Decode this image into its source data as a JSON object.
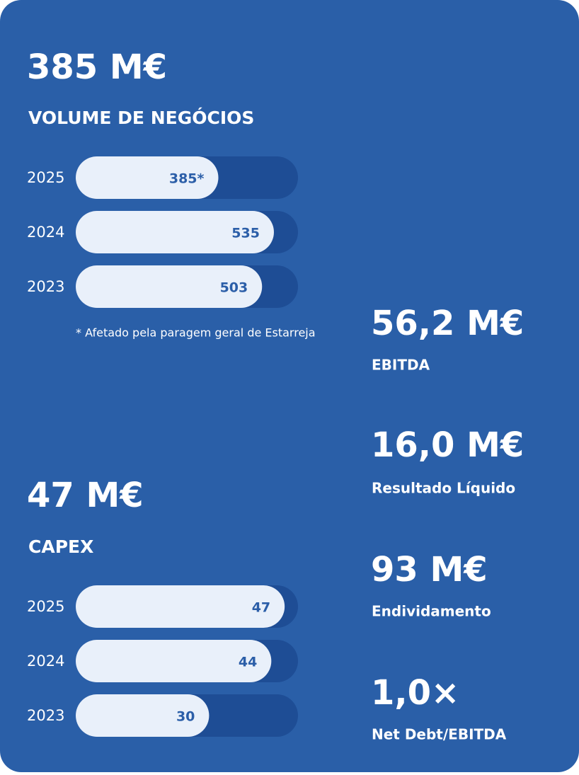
{
  "chart_data": [
    {
      "type": "bar",
      "orientation": "horizontal",
      "headline": "385 M€",
      "title": "VOLUME DE NEGÓCIOS",
      "categories": [
        "2025",
        "2024",
        "2023"
      ],
      "values": [
        385,
        535,
        503
      ],
      "value_labels": [
        "385*",
        "535",
        "503"
      ],
      "xlim": [
        0,
        600
      ],
      "color": "#e9f0fa",
      "track_color": "#1e4d95",
      "note": "* Afetado pela paragem geral de Estarreja"
    },
    {
      "type": "bar",
      "orientation": "horizontal",
      "headline": "47 M€",
      "title": "CAPEX",
      "categories": [
        "2025",
        "2024",
        "2023"
      ],
      "values": [
        47,
        44,
        30
      ],
      "xlim": [
        0,
        50
      ],
      "color": "#e9f0fa",
      "track_color": "#1e4d95"
    }
  ],
  "kpis": [
    {
      "value": "56,2 M€",
      "label": "EBITDA"
    },
    {
      "value": "16,0 M€",
      "label": "Resultado Líquido"
    },
    {
      "value": "93 M€",
      "label": "Endividamento"
    },
    {
      "value": "1,0×",
      "label": "Net Debt/EBITDA"
    }
  ]
}
